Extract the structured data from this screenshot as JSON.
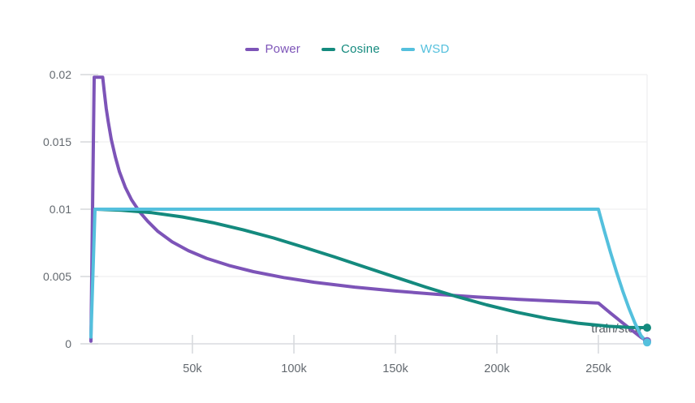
{
  "colors": {
    "power": "#7D54B8",
    "cosine": "#148A7E",
    "wsd": "#54C0DD",
    "grid": "#efeff1",
    "baseline": "#e3e4e8",
    "tick_mark": "#d6d8dc",
    "tick_label": "#63696f",
    "axis_title": "#5b6066",
    "background": "#ffffff"
  },
  "chart_data": {
    "type": "line",
    "title": "",
    "xlabel": "train/step",
    "ylabel": "",
    "xlim": [
      0,
      274000
    ],
    "ylim": [
      0,
      0.02
    ],
    "grid": true,
    "legend_position": "top-center",
    "x_ticks": [
      {
        "value": 50000,
        "label": "50k"
      },
      {
        "value": 100000,
        "label": "100k"
      },
      {
        "value": 150000,
        "label": "150k"
      },
      {
        "value": 200000,
        "label": "200k"
      },
      {
        "value": 250000,
        "label": "250k"
      }
    ],
    "y_ticks": [
      {
        "value": 0,
        "label": "0"
      },
      {
        "value": 0.005,
        "label": "0.005"
      },
      {
        "value": 0.01,
        "label": "0.01"
      },
      {
        "value": 0.015,
        "label": "0.015"
      },
      {
        "value": 0.02,
        "label": "0.02"
      }
    ],
    "series": [
      {
        "name": "Power",
        "color": "#7D54B8",
        "end_dot": true,
        "points": [
          [
            0,
            0.0002
          ],
          [
            1600,
            0.0198
          ],
          [
            5800,
            0.0198
          ],
          [
            6500,
            0.0188
          ],
          [
            7500,
            0.0175
          ],
          [
            8500,
            0.0165
          ],
          [
            10000,
            0.0152
          ],
          [
            12000,
            0.0139
          ],
          [
            14000,
            0.0128
          ],
          [
            17000,
            0.0116
          ],
          [
            20000,
            0.0107
          ],
          [
            24000,
            0.0098
          ],
          [
            28000,
            0.0091
          ],
          [
            33000,
            0.00835
          ],
          [
            40000,
            0.00758
          ],
          [
            48000,
            0.00692
          ],
          [
            57000,
            0.00635
          ],
          [
            68000,
            0.00582
          ],
          [
            80000,
            0.00536
          ],
          [
            95000,
            0.00492
          ],
          [
            110000,
            0.00457
          ],
          [
            130000,
            0.00421
          ],
          [
            150000,
            0.00392
          ],
          [
            170000,
            0.00368
          ],
          [
            190000,
            0.00348
          ],
          [
            210000,
            0.00331
          ],
          [
            230000,
            0.00316
          ],
          [
            250000,
            0.00303
          ],
          [
            256000,
            0.00228
          ],
          [
            262000,
            0.00155
          ],
          [
            267000,
            0.00095
          ],
          [
            271000,
            0.00048
          ],
          [
            274000,
            0.0002
          ]
        ]
      },
      {
        "name": "Cosine",
        "color": "#148A7E",
        "end_dot": true,
        "points": [
          [
            2000,
            0.01
          ],
          [
            15000,
            0.00993
          ],
          [
            30000,
            0.00974
          ],
          [
            45000,
            0.00943
          ],
          [
            60000,
            0.009
          ],
          [
            75000,
            0.00847
          ],
          [
            90000,
            0.00786
          ],
          [
            105000,
            0.00717
          ],
          [
            120000,
            0.00645
          ],
          [
            135000,
            0.0057
          ],
          [
            150000,
            0.00495
          ],
          [
            165000,
            0.00421
          ],
          [
            180000,
            0.00352
          ],
          [
            195000,
            0.00289
          ],
          [
            210000,
            0.00234
          ],
          [
            225000,
            0.00188
          ],
          [
            240000,
            0.00153
          ],
          [
            255000,
            0.0013
          ],
          [
            265000,
            0.00122
          ],
          [
            274000,
            0.0012
          ]
        ]
      },
      {
        "name": "WSD",
        "color": "#54C0DD",
        "end_dot": true,
        "points": [
          [
            0,
            0.0005
          ],
          [
            2000,
            0.01
          ],
          [
            250000,
            0.01
          ],
          [
            253000,
            0.00835
          ],
          [
            256000,
            0.00678
          ],
          [
            259000,
            0.0053
          ],
          [
            262000,
            0.00392
          ],
          [
            265000,
            0.00266
          ],
          [
            268000,
            0.00154
          ],
          [
            271000,
            0.0006
          ],
          [
            274000,
            0.0001
          ]
        ]
      }
    ]
  }
}
